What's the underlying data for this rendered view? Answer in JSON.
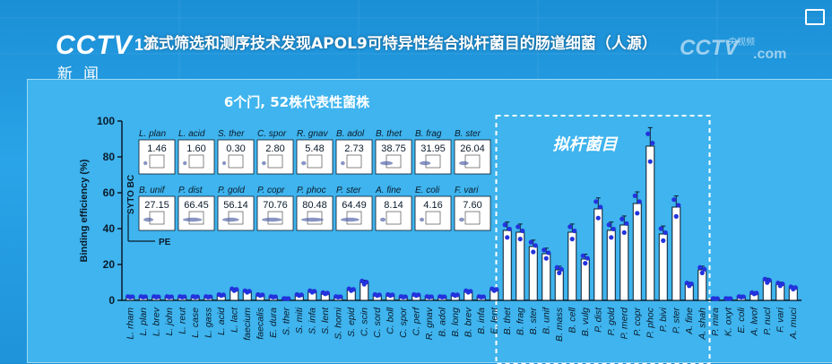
{
  "header": {
    "logo_cctv": "CCTV",
    "logo_num": "13",
    "logo_news": "新闻",
    "headline": "流式筛选和测序技术发现APOL9可特异性结合拟杆菌目的肠道细菌（人源）",
    "watermark_small": "央视频",
    "watermark": "CCTV",
    "watermark_com": ".com"
  },
  "chart_data": {
    "type": "bar",
    "ylabel": "Binding efficiency (%)",
    "ylim": [
      0,
      100
    ],
    "yticks": [
      0,
      20,
      40,
      60,
      80,
      100
    ],
    "subtitle": "6个门, 52株代表性菌株",
    "highlight_label": "拟杆菌目",
    "categories": [
      "L. rham",
      "L. plan",
      "L. brev",
      "L. john",
      "L. reut",
      "L. case",
      "L. gass",
      "L. acid",
      "L. lact",
      "faecium",
      "faecalis",
      "E. dura",
      "S. ther",
      "S. miti",
      "S. infa",
      "S. lent",
      "S. homi",
      "S. epid",
      "C. scin",
      "C. sord",
      "C. boll",
      "C. spor",
      "C. perf",
      "R. gnav",
      "B. adol",
      "B. long",
      "B. brev",
      "B. infa",
      "E. lent",
      "B. thet",
      "B. frag",
      "B. ster",
      "B. unif",
      "B. mass",
      "B. cell",
      "B. vulg",
      "P. dist",
      "P. gold",
      "P. merd",
      "P. copr",
      "P. phoc",
      "P. bivi",
      "P. ster",
      "A. fine",
      "A. shah",
      "P. mira",
      "K. oxyt",
      "E. coli",
      "A. lwof",
      "P. nucl",
      "F. vari",
      "A. muci"
    ],
    "values": [
      2,
      2,
      2,
      2,
      2,
      2,
      2,
      3,
      6,
      5,
      3,
      2,
      1,
      3,
      5,
      4,
      2,
      6,
      10,
      3,
      3,
      2,
      3,
      2,
      2,
      3,
      5,
      2,
      6,
      39,
      38,
      30,
      26,
      17,
      38,
      23,
      51,
      39,
      42,
      54,
      86,
      37,
      52,
      9,
      17,
      1,
      1,
      2,
      4,
      11,
      9,
      7
    ],
    "highlight_range": [
      29,
      44
    ],
    "inset": {
      "ylabel": "SYTO BC",
      "xlabel": "PE",
      "row1": [
        {
          "name": "L. plan",
          "value": "1.46"
        },
        {
          "name": "L. acid",
          "value": "1.60"
        },
        {
          "name": "S. ther",
          "value": "0.30"
        },
        {
          "name": "C. spor",
          "value": "2.80"
        },
        {
          "name": "R. gnav",
          "value": "5.48"
        },
        {
          "name": "B. adol",
          "value": "2.73"
        },
        {
          "name": "B. thet",
          "value": "38.75"
        },
        {
          "name": "B. frag",
          "value": "31.95"
        },
        {
          "name": "B. ster",
          "value": "26.04"
        }
      ],
      "row2": [
        {
          "name": "B. unif",
          "value": "27.15"
        },
        {
          "name": "P. dist",
          "value": "66.45"
        },
        {
          "name": "P. gold",
          "value": "56.14"
        },
        {
          "name": "P. copr",
          "value": "70.76"
        },
        {
          "name": "P. phoc",
          "value": "80.48"
        },
        {
          "name": "P. ster",
          "value": "64.49"
        },
        {
          "name": "A. fine",
          "value": "8.14"
        },
        {
          "name": "E. coli",
          "value": "4.16"
        },
        {
          "name": "F. vari",
          "value": "7.60"
        }
      ]
    }
  }
}
